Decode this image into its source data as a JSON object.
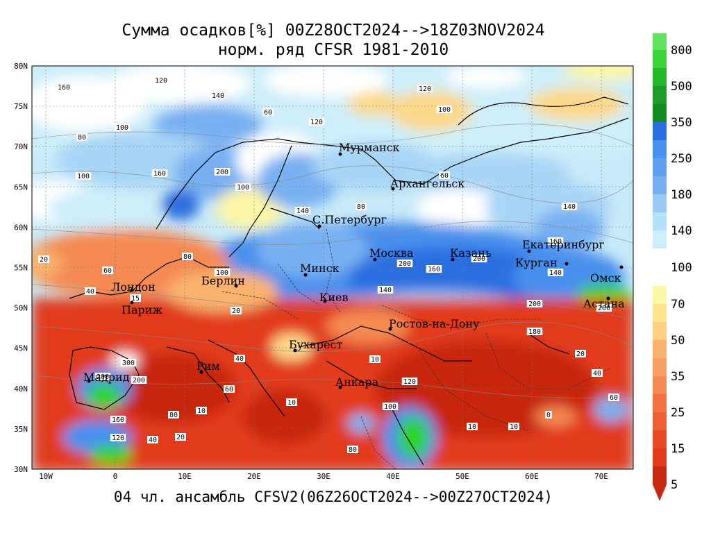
{
  "title_line1": "Сумма осадков[%] 00Z28OCT2024-->18Z03NOV2024",
  "title_line2": "норм. ряд CFSR 1981-2010",
  "footer": "04 чл. ансамбль CFSV2(06Z26OCT2024-->00Z27OCT2024)",
  "lat_labels": [
    "80N",
    "75N",
    "70N",
    "65N",
    "60N",
    "55N",
    "50N",
    "45N",
    "40N",
    "35N",
    "30N"
  ],
  "lon_labels": [
    "10W",
    "0",
    "10E",
    "20E",
    "30E",
    "40E",
    "50E",
    "60E",
    "70E"
  ],
  "colorbar_labels": [
    "800",
    "500",
    "350",
    "250",
    "180",
    "140",
    "100",
    "70",
    "50",
    "35",
    "25",
    "15",
    "5"
  ],
  "colorbar_colors": [
    "#2ed41c",
    "#58e258",
    "#0f8c1a",
    "#2e9e2a",
    "#2a6ee0",
    "#4a90ee",
    "#78b0f2",
    "#a8d4f6",
    "#cdeefa",
    "#ffffff",
    "#fdf6a6",
    "#fcd98a",
    "#f9b36e",
    "#f58a52",
    "#ef6038",
    "#e23a1e",
    "#c72810"
  ],
  "cities": [
    {
      "name": "Мурманск"
    },
    {
      "name": "Архангельск"
    },
    {
      "name": "С.Петербург"
    },
    {
      "name": "Москва"
    },
    {
      "name": "Казань"
    },
    {
      "name": "Екатеринбург"
    },
    {
      "name": "Курган"
    },
    {
      "name": "Омск"
    },
    {
      "name": "Астана"
    },
    {
      "name": "Минск"
    },
    {
      "name": "Берлин"
    },
    {
      "name": "Лондон"
    },
    {
      "name": "Париж"
    },
    {
      "name": "Киев"
    },
    {
      "name": "Ростов-на-Дону"
    },
    {
      "name": "Бухарест"
    },
    {
      "name": "Рим"
    },
    {
      "name": "Мадрид"
    },
    {
      "name": "Анкара"
    }
  ],
  "contour_labels": [
    "160",
    "120",
    "140",
    "100",
    "80",
    "60",
    "120",
    "80",
    "120",
    "100",
    "60",
    "140",
    "100",
    "160",
    "200",
    "100",
    "140",
    "20",
    "40",
    "60",
    "15",
    "10",
    "10",
    "300",
    "200",
    "200",
    "160",
    "120",
    "40",
    "20",
    "10",
    "10",
    "10",
    "0",
    "20",
    "40",
    "60",
    "80",
    "100",
    "120",
    "140",
    "160",
    "200",
    "140",
    "200",
    "200",
    "180",
    "200",
    "160",
    "100",
    "80",
    "20",
    "60",
    "80",
    "40"
  ]
}
